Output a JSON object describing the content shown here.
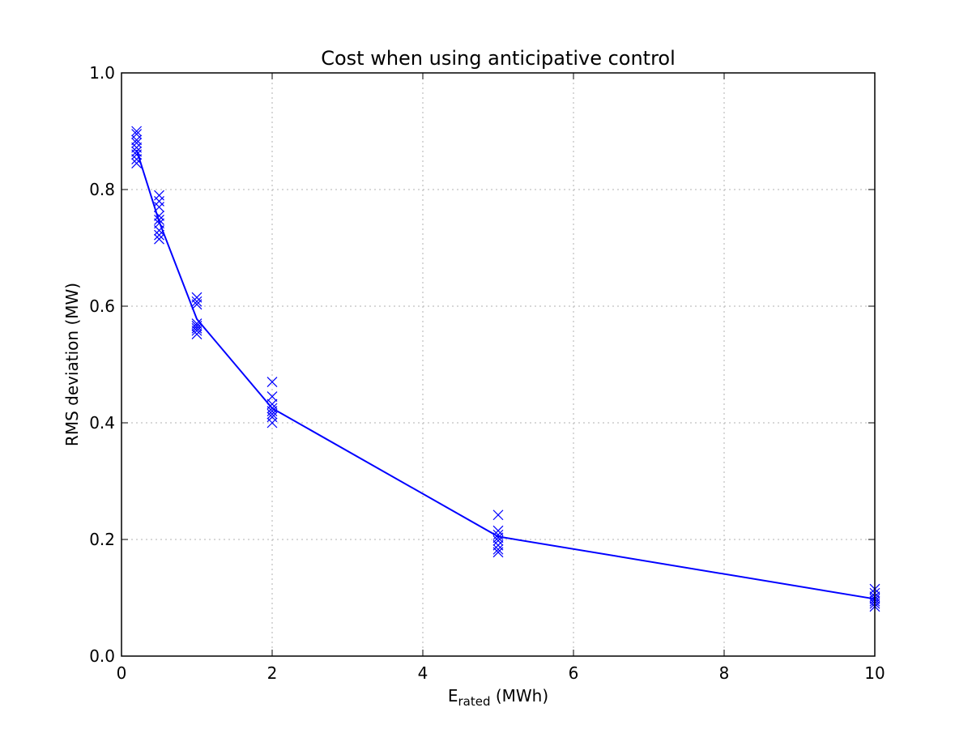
{
  "chart_data": {
    "type": "line",
    "title": "Cost when using anticipative control",
    "xlabel_main": "E",
    "xlabel_sub": "rated",
    "xlabel_unit": " (MWh)",
    "ylabel": "RMS deviation (MW)",
    "xlim": [
      0,
      10
    ],
    "ylim": [
      0.0,
      1.0
    ],
    "xticks": [
      0,
      2,
      4,
      6,
      8,
      10
    ],
    "xtick_labels": [
      "0",
      "2",
      "4",
      "6",
      "8",
      "10"
    ],
    "yticks": [
      0.0,
      0.2,
      0.4,
      0.6,
      0.8,
      1.0
    ],
    "ytick_labels": [
      "0.0",
      "0.2",
      "0.4",
      "0.6",
      "0.8",
      "1.0"
    ],
    "grid": true,
    "color": "#0000ff",
    "series": [
      {
        "kind": "line",
        "x": [
          0.2,
          0.5,
          1.0,
          2.0,
          5.0,
          10.0
        ],
        "y": [
          0.868,
          0.745,
          0.578,
          0.425,
          0.205,
          0.098
        ]
      },
      {
        "kind": "scatter",
        "marker": "x",
        "points": [
          [
            0.2,
            0.9
          ],
          [
            0.2,
            0.895
          ],
          [
            0.2,
            0.885
          ],
          [
            0.2,
            0.88
          ],
          [
            0.2,
            0.872
          ],
          [
            0.2,
            0.865
          ],
          [
            0.2,
            0.86
          ],
          [
            0.2,
            0.852
          ],
          [
            0.2,
            0.845
          ],
          [
            0.5,
            0.79
          ],
          [
            0.5,
            0.78
          ],
          [
            0.5,
            0.77
          ],
          [
            0.5,
            0.755
          ],
          [
            0.5,
            0.748
          ],
          [
            0.5,
            0.742
          ],
          [
            0.5,
            0.73
          ],
          [
            0.5,
            0.722
          ],
          [
            0.5,
            0.715
          ],
          [
            1.0,
            0.615
          ],
          [
            1.0,
            0.608
          ],
          [
            1.0,
            0.603
          ],
          [
            1.0,
            0.57
          ],
          [
            1.0,
            0.566
          ],
          [
            1.0,
            0.562
          ],
          [
            1.0,
            0.558
          ],
          [
            1.0,
            0.552
          ],
          [
            2.0,
            0.47
          ],
          [
            2.0,
            0.445
          ],
          [
            2.0,
            0.432
          ],
          [
            2.0,
            0.425
          ],
          [
            2.0,
            0.42
          ],
          [
            2.0,
            0.415
          ],
          [
            2.0,
            0.41
          ],
          [
            2.0,
            0.4
          ],
          [
            5.0,
            0.242
          ],
          [
            5.0,
            0.215
          ],
          [
            5.0,
            0.208
          ],
          [
            5.0,
            0.203
          ],
          [
            5.0,
            0.198
          ],
          [
            5.0,
            0.19
          ],
          [
            5.0,
            0.183
          ],
          [
            5.0,
            0.178
          ],
          [
            10.0,
            0.115
          ],
          [
            10.0,
            0.108
          ],
          [
            10.0,
            0.102
          ],
          [
            10.0,
            0.098
          ],
          [
            10.0,
            0.094
          ],
          [
            10.0,
            0.09
          ],
          [
            10.0,
            0.085
          ]
        ]
      }
    ]
  }
}
